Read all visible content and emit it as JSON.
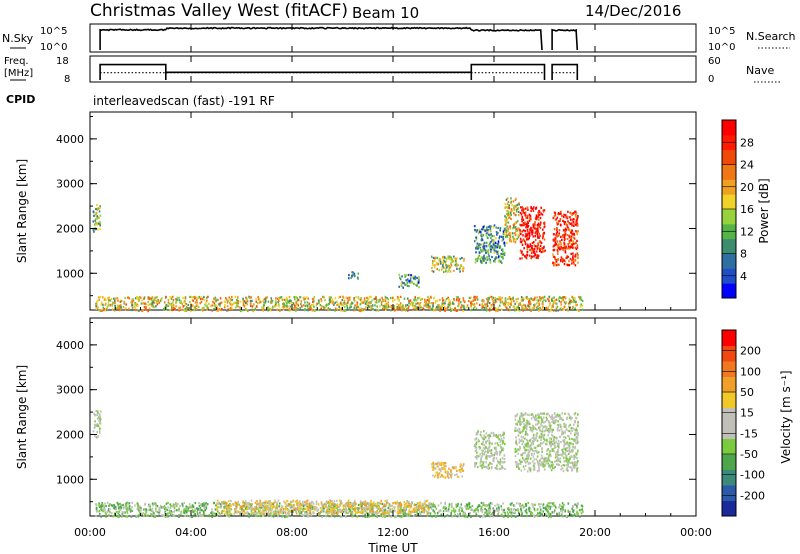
{
  "header": {
    "title": "Christmas Valley West (fitACF)",
    "beam": "Beam 10",
    "date": "14/Dec/2016"
  },
  "param_panel": {
    "nsky_label": "N.Sky",
    "nsky_ticks": [
      "10^5",
      "10^0"
    ],
    "nsearch_label": "N.Search",
    "nsearch_ticks": [
      "10^5",
      "10^0"
    ],
    "freq_label_line1": "Freq.",
    "freq_label_line2": "[MHz]",
    "freq_ticks": [
      "18",
      "8"
    ],
    "nave_label": "Nave",
    "nave_ticks": [
      "60",
      "0"
    ],
    "cpid_label": "CPID",
    "cpid_text": "interleavedscan (fast) -191 RF"
  },
  "x_axis": {
    "label": "Time UT",
    "ticks": [
      "00:00",
      "04:00",
      "08:00",
      "12:00",
      "16:00",
      "20:00",
      "00:00"
    ],
    "tick_hours": [
      0,
      4,
      8,
      12,
      16,
      20,
      24
    ]
  },
  "power_colorbar": {
    "label": "Power [dB]",
    "ticks": [
      "28",
      "24",
      "20",
      "16",
      "12",
      "8",
      "4"
    ],
    "colors": [
      "#0000ff",
      "#1f4ec8",
      "#2e6ea0",
      "#3c8c6e",
      "#55b448",
      "#96d23c",
      "#f0d228",
      "#f0a020",
      "#f07814",
      "#f04a0a",
      "#ff1a00",
      "#ff0000"
    ]
  },
  "velocity_colorbar": {
    "label": "Velocity [m s⁻¹]",
    "ticks": [
      "200",
      "100",
      "50",
      "15",
      "-15",
      "-50",
      "-100",
      "-200"
    ],
    "colors": [
      "#1a2a9a",
      "#2a5aa8",
      "#3c8a7a",
      "#4ea54c",
      "#7acc3e",
      "#c0c0b8",
      "#c0c0b8",
      "#f0c828",
      "#f0a028",
      "#f07820",
      "#f04810",
      "#ff0000"
    ]
  },
  "chart_data": [
    {
      "type": "line",
      "name": "N.Sky / N.Search",
      "x": [
        0.4,
        3.0,
        15.1,
        18.0,
        18.3,
        19.3
      ],
      "y_sky": [
        4.2,
        4.5,
        4.6,
        4.0,
        4.2,
        4.1
      ],
      "noise_segments": [
        [
          0.4,
          17.9
        ],
        [
          18.3,
          19.3
        ]
      ]
    },
    {
      "type": "line",
      "name": "Freq / Nave",
      "freq_mhz_steps": [
        [
          0.4,
          3.0,
          15.0
        ],
        [
          3.0,
          15.1,
          11.5
        ],
        [
          15.1,
          18.0,
          15.0
        ],
        [
          18.3,
          19.3,
          15.0
        ]
      ],
      "nave_value": 20
    },
    {
      "type": "heatmap",
      "title": "Power",
      "ylabel": "Slant Range [km]",
      "ylim": [
        180,
        4600
      ],
      "yticks": [
        1000,
        2000,
        3000,
        4000
      ],
      "xlim": [
        0,
        24
      ],
      "regions": [
        {
          "x": [
            0.1,
            0.4
          ],
          "y": [
            1950,
            2550
          ],
          "level": 4
        },
        {
          "x": [
            0.2,
            19.5
          ],
          "y": [
            180,
            500
          ],
          "level": 6
        },
        {
          "x": [
            10.2,
            10.6
          ],
          "y": [
            900,
            1050
          ],
          "level": 3
        },
        {
          "x": [
            12.2,
            13.0
          ],
          "y": [
            700,
            1000
          ],
          "level": 3
        },
        {
          "x": [
            13.5,
            14.8
          ],
          "y": [
            1050,
            1400
          ],
          "level": 5
        },
        {
          "x": [
            15.2,
            16.4
          ],
          "y": [
            1250,
            2100
          ],
          "level": 3
        },
        {
          "x": [
            16.4,
            17.0
          ],
          "y": [
            1700,
            2700
          ],
          "level": 6
        },
        {
          "x": [
            17.0,
            18.0
          ],
          "y": [
            1350,
            2500
          ],
          "level": 11
        },
        {
          "x": [
            18.3,
            19.3
          ],
          "y": [
            1200,
            2400
          ],
          "level": 10
        }
      ]
    },
    {
      "type": "heatmap",
      "title": "Velocity",
      "ylabel": "Slant Range [km]",
      "ylim": [
        180,
        4600
      ],
      "yticks": [
        1000,
        2000,
        3000,
        4000
      ],
      "xlim": [
        0,
        24
      ],
      "regions": [
        {
          "x": [
            0.1,
            0.4
          ],
          "y": [
            1950,
            2550
          ],
          "level": 5
        },
        {
          "x": [
            0.2,
            19.5
          ],
          "y": [
            180,
            500
          ],
          "level": 4
        },
        {
          "x": [
            5.0,
            13.5
          ],
          "y": [
            250,
            550
          ],
          "level": 7
        },
        {
          "x": [
            13.5,
            14.8
          ],
          "y": [
            1050,
            1400
          ],
          "level": 7
        },
        {
          "x": [
            15.2,
            16.4
          ],
          "y": [
            1250,
            2100
          ],
          "level": 5
        },
        {
          "x": [
            16.8,
            19.3
          ],
          "y": [
            1200,
            2500
          ],
          "level": 5
        }
      ]
    }
  ]
}
